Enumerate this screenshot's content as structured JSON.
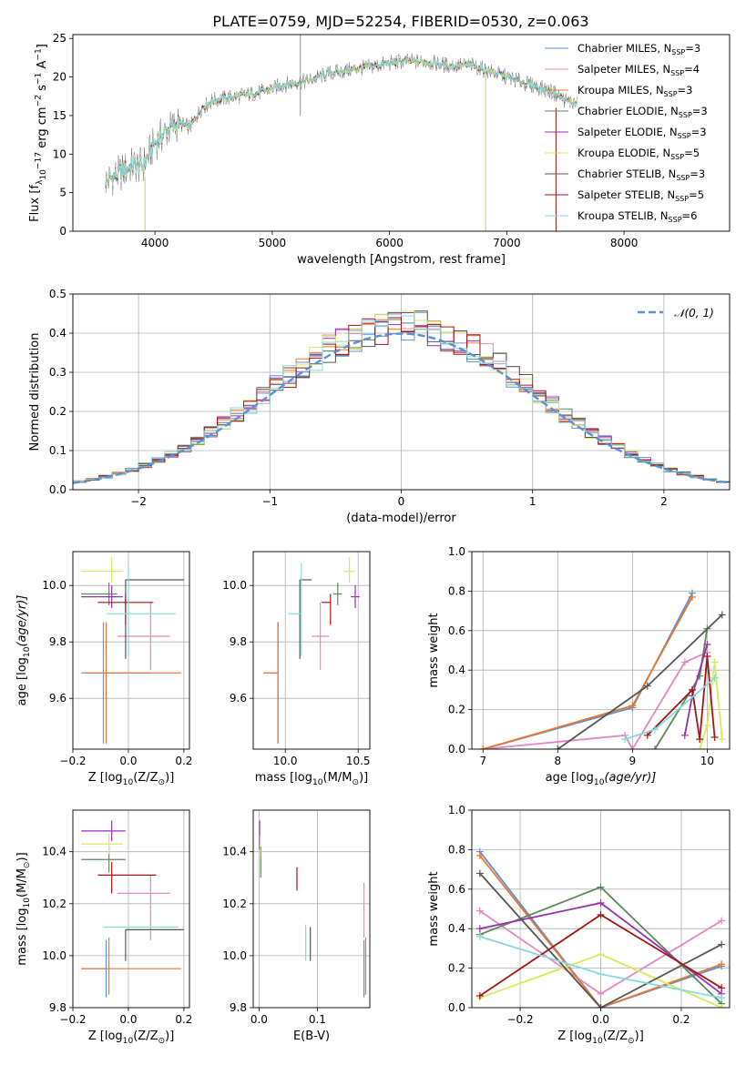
{
  "figure_title": "PLATE=0759, MJD=52254, FIBERID=0530, z=0.063",
  "colors": {
    "Chabrier MILES": "#5b8fd6",
    "Salpeter MILES": "#e387c2",
    "Kroupa MILES": "#e8772e",
    "Chabrier ELODIE": "#5a8a5a",
    "Salpeter ELODIE": "#9a2fae",
    "Kroupa ELODIE": "#d6ea5a",
    "Chabrier STELIB": "#555555",
    "Salpeter STELIB": "#a31515",
    "Kroupa STELIB": "#86d9dc",
    "normal": "#5b8fd6"
  },
  "chart_data": [
    {
      "type": "line",
      "id": "spectrum",
      "title": "PLATE=0759, MJD=52254, FIBERID=0530, z=0.063",
      "xlabel": "wavelength [Angstrom, rest frame]",
      "ylabel_parts": [
        "Flux [f",
        "λ",
        "10",
        "−17",
        " erg cm",
        "−2",
        " s",
        "−1",
        " A",
        "−1",
        "]"
      ],
      "xlim": [
        3300,
        8900
      ],
      "ylim": [
        0,
        25.5
      ],
      "xticks": [
        4000,
        5000,
        6000,
        7000,
        8000
      ],
      "yticks": [
        0,
        5,
        10,
        15,
        20,
        25
      ],
      "legend": "top-right",
      "series": [
        {
          "name_base": "Chabrier MILES",
          "nssp": "3"
        },
        {
          "name_base": "Salpeter MILES",
          "nssp": "4"
        },
        {
          "name_base": "Kroupa MILES",
          "nssp": "3"
        },
        {
          "name_base": "Chabrier ELODIE",
          "nssp": "3"
        },
        {
          "name_base": "Salpeter ELODIE",
          "nssp": "3"
        },
        {
          "name_base": "Kroupa ELODIE",
          "nssp": "5"
        },
        {
          "name_base": "Chabrier STELIB",
          "nssp": "3"
        },
        {
          "name_base": "Salpeter STELIB",
          "nssp": "5"
        },
        {
          "name_base": "Kroupa STELIB",
          "nssp": "6"
        }
      ],
      "continuum": {
        "x": [
          3580,
          3700,
          3800,
          3900,
          4000,
          4100,
          4200,
          4300,
          4400,
          4500,
          4700,
          4900,
          5100,
          5300,
          5500,
          5700,
          5900,
          6100,
          6300,
          6500,
          6700,
          6900,
          7100,
          7200,
          7300,
          7400,
          7500,
          7600
        ],
        "y": [
          6.5,
          7.5,
          8.5,
          8.5,
          11.5,
          13,
          14,
          13.5,
          16,
          17,
          17.5,
          18,
          19,
          19.5,
          20.5,
          21,
          21.5,
          22,
          22,
          21.5,
          21.5,
          20.5,
          19.5,
          19,
          18.5,
          18,
          17,
          16.5
        ]
      }
    },
    {
      "type": "bar",
      "id": "residual-histogram",
      "xlabel": "(data-model)/error",
      "ylabel": "Normed distribution",
      "xlim": [
        -2.5,
        2.5
      ],
      "ylim": [
        0,
        0.5
      ],
      "xticks": [
        -2,
        -1,
        0,
        1,
        2
      ],
      "yticks": [
        0,
        0.1,
        0.2,
        0.3,
        0.4,
        0.5
      ],
      "grid": true,
      "legend": "top-right",
      "reference_label": "𝒩(0, 1)"
    },
    {
      "type": "scatter",
      "id": "age-vs-metallicity",
      "xlabel_parts": [
        "Z [log",
        "10",
        "(Z/Z",
        "⊙",
        ")]"
      ],
      "ylabel_parts": [
        "age  [log",
        "10",
        "(age/yr)]"
      ],
      "xlim": [
        -0.2,
        0.22
      ],
      "ylim": [
        9.42,
        10.12
      ],
      "xticks": [
        -0.2,
        0.0,
        0.2
      ],
      "yticks": [
        9.6,
        9.8,
        10.0
      ],
      "grid": true,
      "points": [
        {
          "series": "Chabrier MILES",
          "x": -0.09,
          "xerr": [
            0.08,
            0.17
          ],
          "y": 9.69,
          "yerr": [
            0.25,
            0.18
          ]
        },
        {
          "series": "Salpeter MILES",
          "x": 0.08,
          "xerr": [
            0.12,
            0.07
          ],
          "y": 9.82,
          "yerr": [
            0.12,
            0.12
          ]
        },
        {
          "series": "Kroupa MILES",
          "x": -0.08,
          "xerr": [
            0.08,
            0.27
          ],
          "y": 9.69,
          "yerr": [
            0.25,
            0.18
          ]
        },
        {
          "series": "Chabrier ELODIE",
          "x": -0.07,
          "xerr": [
            0.1,
            0.03
          ],
          "y": 9.97,
          "yerr": [
            0.04,
            0.04
          ]
        },
        {
          "series": "Salpeter ELODIE",
          "x": -0.06,
          "xerr": [
            0.11,
            0.04
          ],
          "y": 9.96,
          "yerr": [
            0.04,
            0.04
          ]
        },
        {
          "series": "Kroupa ELODIE",
          "x": -0.06,
          "xerr": [
            0.11,
            0.04
          ],
          "y": 10.05,
          "yerr": [
            0.04,
            0.05
          ]
        },
        {
          "series": "Chabrier STELIB",
          "x": -0.01,
          "xerr": [
            0.0,
            0.21
          ],
          "y": 10.02,
          "yerr": [
            0.28,
            0.0
          ]
        },
        {
          "series": "Salpeter STELIB",
          "x": -0.01,
          "xerr": [
            0.1,
            0.1
          ],
          "y": 9.94,
          "yerr": [
            0.08,
            0.03
          ]
        },
        {
          "series": "Kroupa STELIB",
          "x": 0.0,
          "xerr": [
            0.08,
            0.17
          ],
          "y": 9.9,
          "yerr": [
            0.15,
            0.18
          ]
        }
      ]
    },
    {
      "type": "scatter",
      "id": "age-vs-mass",
      "xlabel_parts": [
        "mass [log",
        "10",
        "(M/M",
        "⊙",
        ")]"
      ],
      "ylabel": "",
      "xlim": [
        9.78,
        10.58
      ],
      "ylim": [
        9.42,
        10.12
      ],
      "xticks": [
        10.0,
        10.5
      ],
      "yticks": [
        9.6,
        9.8,
        10.0
      ],
      "grid": true,
      "points": [
        {
          "series": "Chabrier MILES",
          "x": 9.95,
          "xerr": [
            0.1,
            0.0
          ],
          "y": 9.69,
          "yerr": [
            0.25,
            0.18
          ]
        },
        {
          "series": "Salpeter MILES",
          "x": 10.24,
          "xerr": [
            0.06,
            0.06
          ],
          "y": 9.82,
          "yerr": [
            0.12,
            0.12
          ]
        },
        {
          "series": "Kroupa MILES",
          "x": 9.95,
          "xerr": [
            0.1,
            0.0
          ],
          "y": 9.69,
          "yerr": [
            0.25,
            0.18
          ]
        },
        {
          "series": "Chabrier ELODIE",
          "x": 10.36,
          "xerr": [
            0.03,
            0.03
          ],
          "y": 9.97,
          "yerr": [
            0.04,
            0.04
          ]
        },
        {
          "series": "Salpeter ELODIE",
          "x": 10.48,
          "xerr": [
            0.03,
            0.03
          ],
          "y": 9.96,
          "yerr": [
            0.04,
            0.04
          ]
        },
        {
          "series": "Kroupa ELODIE",
          "x": 10.44,
          "xerr": [
            0.04,
            0.04
          ],
          "y": 10.05,
          "yerr": [
            0.04,
            0.05
          ]
        },
        {
          "series": "Chabrier STELIB",
          "x": 10.1,
          "xerr": [
            0.0,
            0.08
          ],
          "y": 10.02,
          "yerr": [
            0.28,
            0.0
          ]
        },
        {
          "series": "Salpeter STELIB",
          "x": 10.31,
          "xerr": [
            0.06,
            0.0
          ],
          "y": 9.94,
          "yerr": [
            0.08,
            0.03
          ]
        },
        {
          "series": "Kroupa STELIB",
          "x": 10.11,
          "xerr": [
            0.09,
            0.0
          ],
          "y": 9.9,
          "yerr": [
            0.15,
            0.18
          ]
        }
      ]
    },
    {
      "type": "line",
      "id": "mass-weight-vs-age",
      "xlabel_parts": [
        "age  [log",
        "10",
        "(age/yr)]"
      ],
      "ylabel": "mass weight",
      "xlim": [
        6.85,
        10.3
      ],
      "ylim": [
        0,
        1.0
      ],
      "xticks": [
        7,
        8,
        9,
        10
      ],
      "yticks": [
        0.0,
        0.2,
        0.4,
        0.6,
        0.8,
        1.0
      ],
      "grid": true,
      "series": [
        {
          "name": "Chabrier MILES",
          "x": [
            7.0,
            9.0,
            9.8
          ],
          "y": [
            0.0,
            0.21,
            0.79
          ]
        },
        {
          "name": "Salpeter MILES",
          "x": [
            7.0,
            8.9,
            9.0,
            9.7,
            10.0
          ],
          "y": [
            0.0,
            0.07,
            0.0,
            0.44,
            0.49
          ]
        },
        {
          "name": "Kroupa MILES",
          "x": [
            7.0,
            9.0,
            9.8
          ],
          "y": [
            0.0,
            0.22,
            0.77
          ]
        },
        {
          "name": "Chabrier ELODIE",
          "x": [
            9.3,
            9.9,
            10.0
          ],
          "y": [
            0.0,
            0.37,
            0.61
          ]
        },
        {
          "name": "Salpeter ELODIE",
          "x": [
            9.7,
            9.8,
            10.0
          ],
          "y": [
            0.07,
            0.27,
            0.53
          ]
        },
        {
          "name": "Kroupa ELODIE",
          "x": [
            9.9,
            10.0,
            10.1,
            10.2
          ],
          "y": [
            0.0,
            0.12,
            0.44,
            0.05
          ]
        },
        {
          "name": "Chabrier STELIB",
          "x": [
            8.0,
            9.2,
            10.2
          ],
          "y": [
            0.0,
            0.32,
            0.68
          ]
        },
        {
          "name": "Salpeter STELIB",
          "x": [
            9.2,
            9.8,
            9.9,
            10.0,
            10.1
          ],
          "y": [
            0.07,
            0.3,
            0.05,
            0.47,
            0.06
          ]
        },
        {
          "name": "Kroupa STELIB",
          "x": [
            8.9,
            9.3,
            10.1
          ],
          "y": [
            0.05,
            0.1,
            0.36
          ]
        }
      ]
    },
    {
      "type": "scatter",
      "id": "mass-vs-metallicity",
      "xlabel_parts": [
        "Z [log",
        "10",
        "(Z/Z",
        "⊙",
        ")]"
      ],
      "ylabel_parts": [
        "mass [log",
        "10",
        "(M/M",
        "⊙",
        ")]"
      ],
      "xlim": [
        -0.2,
        0.22
      ],
      "ylim": [
        9.8,
        10.56
      ],
      "xticks": [
        -0.2,
        0.0,
        0.2
      ],
      "yticks": [
        9.8,
        10.0,
        10.2,
        10.4
      ],
      "grid": true,
      "points": [
        {
          "series": "Chabrier MILES",
          "x": -0.08,
          "xerr": [
            0.09,
            0.0
          ],
          "y": 9.95,
          "yerr": [
            0.11,
            0.11
          ]
        },
        {
          "series": "Salpeter MILES",
          "x": 0.08,
          "xerr": [
            0.12,
            0.07
          ],
          "y": 10.24,
          "yerr": [
            0.18,
            0.07
          ]
        },
        {
          "series": "Kroupa MILES",
          "x": -0.07,
          "xerr": [
            0.1,
            0.26
          ],
          "y": 9.95,
          "yerr": [
            0.1,
            0.12
          ]
        },
        {
          "series": "Chabrier ELODIE",
          "x": -0.07,
          "xerr": [
            0.1,
            0.06
          ],
          "y": 10.37,
          "yerr": [
            0.05,
            0.05
          ]
        },
        {
          "series": "Salpeter ELODIE",
          "x": -0.06,
          "xerr": [
            0.11,
            0.05
          ],
          "y": 10.48,
          "yerr": [
            0.04,
            0.04
          ]
        },
        {
          "series": "Kroupa ELODIE",
          "x": -0.07,
          "xerr": [
            0.1,
            0.05
          ],
          "y": 10.43,
          "yerr": [
            0.04,
            0.04
          ]
        },
        {
          "series": "Chabrier STELIB",
          "x": -0.01,
          "xerr": [
            0.0,
            0.21
          ],
          "y": 10.1,
          "yerr": [
            0.12,
            0.0
          ]
        },
        {
          "series": "Salpeter STELIB",
          "x": -0.06,
          "xerr": [
            0.05,
            0.16
          ],
          "y": 10.31,
          "yerr": [
            0.07,
            0.05
          ]
        },
        {
          "series": "Kroupa STELIB",
          "x": 0.0,
          "xerr": [
            0.09,
            0.18
          ],
          "y": 10.11,
          "yerr": [
            0.0,
            0.0
          ]
        }
      ]
    },
    {
      "type": "scatter",
      "id": "mass-vs-extinction",
      "xlabel": "E(B-V)",
      "ylabel": "",
      "xlim": [
        -0.01,
        0.19
      ],
      "ylim": [
        9.8,
        10.56
      ],
      "xticks": [
        0.0,
        0.1
      ],
      "yticks": [
        9.8,
        10.0,
        10.2,
        10.4
      ],
      "grid": true,
      "points": [
        {
          "series": "Chabrier MILES",
          "x": 0.18,
          "y": 9.95,
          "yerr": [
            0.11,
            0.11
          ]
        },
        {
          "series": "Salpeter MILES",
          "x": 0.18,
          "y": 10.2,
          "yerr": [
            0.13,
            0.08
          ]
        },
        {
          "series": "Kroupa MILES",
          "x": 0.183,
          "y": 9.95,
          "yerr": [
            0.1,
            0.12
          ]
        },
        {
          "series": "Chabrier ELODIE",
          "x": 0.003,
          "y": 10.37,
          "yerr": [
            0.07,
            0.05
          ]
        },
        {
          "series": "Salpeter ELODIE",
          "x": 0.001,
          "y": 10.46,
          "yerr": [
            0.05,
            0.06
          ]
        },
        {
          "series": "Kroupa ELODIE",
          "x": 0.002,
          "y": 10.42,
          "yerr": [
            0.04,
            0.04
          ]
        },
        {
          "series": "Chabrier STELIB",
          "x": 0.088,
          "y": 10.04,
          "yerr": [
            0.06,
            0.07
          ]
        },
        {
          "series": "Salpeter STELIB",
          "x": 0.065,
          "y": 10.3,
          "yerr": [
            0.05,
            0.04
          ]
        },
        {
          "series": "Kroupa STELIB",
          "x": 0.08,
          "y": 10.05,
          "yerr": [
            0.07,
            0.07
          ]
        }
      ]
    },
    {
      "type": "line",
      "id": "mass-weight-vs-metallicity",
      "xlabel_parts": [
        "Z [log",
        "10",
        "(Z/Z",
        "⊙",
        ")]"
      ],
      "ylabel": "mass weight",
      "xlim": [
        -0.32,
        0.32
      ],
      "ylim": [
        0,
        1.0
      ],
      "xticks": [
        -0.2,
        0.0,
        0.2
      ],
      "yticks": [
        0.0,
        0.2,
        0.4,
        0.6,
        0.8,
        1.0
      ],
      "grid": true,
      "series": [
        {
          "name": "Chabrier MILES",
          "x": [
            -0.3,
            0.0,
            0.3
          ],
          "y": [
            0.79,
            0.0,
            0.21
          ]
        },
        {
          "name": "Salpeter MILES",
          "x": [
            -0.3,
            0.0,
            0.3
          ],
          "y": [
            0.49,
            0.07,
            0.44
          ]
        },
        {
          "name": "Kroupa MILES",
          "x": [
            -0.3,
            0.0,
            0.3
          ],
          "y": [
            0.77,
            0.0,
            0.22
          ]
        },
        {
          "name": "Chabrier ELODIE",
          "x": [
            -0.3,
            0.0,
            0.3
          ],
          "y": [
            0.37,
            0.61,
            0.02
          ]
        },
        {
          "name": "Salpeter ELODIE",
          "x": [
            -0.3,
            0.0,
            0.3
          ],
          "y": [
            0.4,
            0.53,
            0.07
          ]
        },
        {
          "name": "Kroupa ELODIE",
          "x": [
            -0.3,
            0.0,
            0.3
          ],
          "y": [
            0.05,
            0.27,
            0.0
          ]
        },
        {
          "name": "Chabrier STELIB",
          "x": [
            -0.3,
            0.0,
            0.3
          ],
          "y": [
            0.68,
            0.0,
            0.32
          ]
        },
        {
          "name": "Salpeter STELIB",
          "x": [
            -0.3,
            0.0,
            0.3
          ],
          "y": [
            0.06,
            0.47,
            0.1
          ]
        },
        {
          "name": "Kroupa STELIB",
          "x": [
            -0.3,
            0.0,
            0.3
          ],
          "y": [
            0.36,
            0.17,
            0.05
          ]
        }
      ]
    }
  ]
}
